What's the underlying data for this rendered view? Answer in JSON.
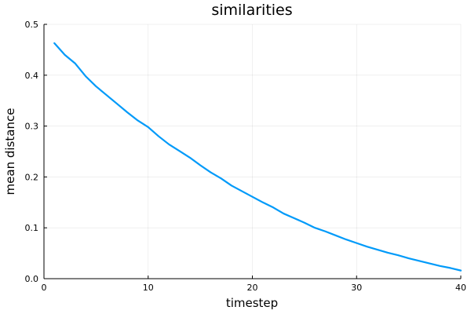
{
  "chart_data": {
    "type": "line",
    "title": "similarities",
    "xlabel": "timestep",
    "ylabel": "mean distance",
    "xlim": [
      0,
      40
    ],
    "ylim": [
      0,
      0.5
    ],
    "xticks": [
      0,
      10,
      20,
      30,
      40
    ],
    "yticks": [
      0.0,
      0.1,
      0.2,
      0.3,
      0.4,
      0.5
    ],
    "xtick_labels": [
      "0",
      "10",
      "20",
      "30",
      "40"
    ],
    "ytick_labels": [
      "0.0",
      "0.1",
      "0.2",
      "0.3",
      "0.4",
      "0.5"
    ],
    "grid": true,
    "legend": "none",
    "series": [
      {
        "color": "#009af9",
        "x": [
          1,
          2,
          3,
          4,
          5,
          6,
          7,
          8,
          9,
          10,
          11,
          12,
          13,
          14,
          15,
          16,
          17,
          18,
          19,
          20,
          21,
          22,
          23,
          24,
          25,
          26,
          27,
          28,
          29,
          30,
          31,
          32,
          33,
          34,
          35,
          36,
          37,
          38,
          39,
          40
        ],
        "y": [
          0.463,
          0.44,
          0.423,
          0.398,
          0.378,
          0.361,
          0.344,
          0.327,
          0.311,
          0.298,
          0.28,
          0.264,
          0.251,
          0.238,
          0.223,
          0.209,
          0.197,
          0.183,
          0.172,
          0.161,
          0.15,
          0.14,
          0.128,
          0.119,
          0.11,
          0.1,
          0.093,
          0.085,
          0.077,
          0.07,
          0.063,
          0.057,
          0.051,
          0.046,
          0.04,
          0.035,
          0.03,
          0.025,
          0.021,
          0.016
        ]
      }
    ]
  }
}
